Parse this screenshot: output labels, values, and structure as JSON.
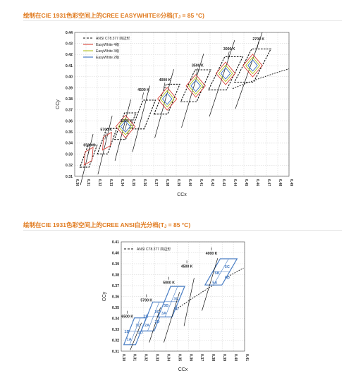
{
  "chart1_title_main": "绘制在CIE 1931色彩空间上的CREE EASYWHITE®分档(T",
  "chart1_title_sub": "J",
  "chart1_title_end": " = 85 °C)",
  "chart2_title_main": "绘制在CIE 1931色彩空间上的CREE ANSI白光分档(T",
  "chart2_title_sub": "J",
  "chart2_title_end": " = 85 °C)",
  "chart_data": [
    {
      "type": "scatter",
      "xlabel": "CCx",
      "ylabel": "CCy",
      "xlim": [
        0.3,
        0.49
      ],
      "ylim": [
        0.31,
        0.44
      ],
      "xticks": [
        "0.30",
        "0.31",
        "0.32",
        "0.33",
        "0.34",
        "0.35",
        "0.36",
        "0.37",
        "0.38",
        "0.39",
        "0.40",
        "0.41",
        "0.42",
        "0.43",
        "0.44",
        "0.45",
        "0.46",
        "0.47",
        "0.48",
        "0.49"
      ],
      "yticks": [
        "0.31",
        "0.32",
        "0.33",
        "0.34",
        "0.35",
        "0.36",
        "0.37",
        "0.38",
        "0.39",
        "0.40",
        "0.41",
        "0.42",
        "0.43",
        "0.44"
      ],
      "legend": [
        "ANSI C78.377 四边形",
        "EasyWhite 4级",
        "EasyWhite 3级",
        "EasyWhite 2级"
      ],
      "legend_position": "top-left",
      "series_colors": {
        "ansi": "#111111",
        "step4": "#d9443a",
        "step3": "#b5c21e",
        "step2": "#3a6fc2"
      },
      "cct_labels": [
        {
          "label": "6500 K",
          "x": 0.313,
          "y": 0.337
        },
        {
          "label": "5700 K",
          "x": 0.328,
          "y": 0.351
        },
        {
          "label": "5000 K",
          "x": 0.346,
          "y": 0.359
        },
        {
          "label": "4500 K",
          "x": 0.361,
          "y": 0.387
        },
        {
          "label": "4000 K",
          "x": 0.38,
          "y": 0.396
        },
        {
          "label": "3500 K",
          "x": 0.409,
          "y": 0.409
        },
        {
          "label": "3000 K",
          "x": 0.437,
          "y": 0.424
        },
        {
          "label": "2700 K",
          "x": 0.463,
          "y": 0.433
        }
      ],
      "quadrangles": [
        {
          "cct": "6500 K",
          "cx": 0.3123,
          "cy": 0.3282,
          "w": 0.008,
          "h": 0.02
        },
        {
          "cct": "5700 K",
          "cx": 0.3287,
          "cy": 0.3417,
          "w": 0.009,
          "h": 0.023
        },
        {
          "cct": "5000 K",
          "cx": 0.3447,
          "cy": 0.3553,
          "w": 0.01,
          "h": 0.024
        },
        {
          "cct": "4500 K",
          "cx": 0.3611,
          "cy": 0.3658,
          "w": 0.011,
          "h": 0.026
        },
        {
          "cct": "4000 K",
          "cx": 0.3818,
          "cy": 0.3797,
          "w": 0.012,
          "h": 0.027
        },
        {
          "cct": "3500 K",
          "cx": 0.4073,
          "cy": 0.3917,
          "w": 0.014,
          "h": 0.029
        },
        {
          "cct": "3000 K",
          "cx": 0.4338,
          "cy": 0.403,
          "w": 0.016,
          "h": 0.03
        },
        {
          "cct": "2700 K",
          "cx": 0.4578,
          "cy": 0.4101,
          "w": 0.017,
          "h": 0.03
        }
      ],
      "easywhite_centers": [
        {
          "x": 0.345,
          "y": 0.355
        },
        {
          "x": 0.382,
          "y": 0.38
        },
        {
          "x": 0.4073,
          "y": 0.3917
        },
        {
          "x": 0.4338,
          "y": 0.403
        },
        {
          "x": 0.4578,
          "y": 0.4101
        }
      ]
    },
    {
      "type": "scatter",
      "xlabel": "CCx",
      "ylabel": "CCy",
      "xlim": [
        0.3,
        0.41
      ],
      "ylim": [
        0.31,
        0.41
      ],
      "xticks": [
        "0.30",
        "0.31",
        "0.32",
        "0.33",
        "0.34",
        "0.35",
        "0.36",
        "0.37",
        "0.38",
        "0.39",
        "0.40",
        "0.41"
      ],
      "yticks": [
        "0.31",
        "0.32",
        "0.33",
        "0.34",
        "0.35",
        "0.36",
        "0.37",
        "0.38",
        "0.39",
        "0.40",
        "0.41"
      ],
      "legend": [
        "ANSI C78.377 四边形"
      ],
      "legend_position": "top-left",
      "bin_color": "#4a7ec4",
      "cct_labels": [
        {
          "label": "6500 K",
          "x": 0.3055,
          "y": 0.3405
        },
        {
          "label": "5700 K",
          "x": 0.3225,
          "y": 0.3555
        },
        {
          "label": "5000 K",
          "x": 0.3425,
          "y": 0.3715
        },
        {
          "label": "4500 K",
          "x": 0.3585,
          "y": 0.3865
        },
        {
          "label": "4000 K",
          "x": 0.3805,
          "y": 0.3985
        }
      ],
      "bins": [
        {
          "label": "1A",
          "x": 0.307,
          "y": 0.321
        },
        {
          "label": "1B",
          "x": 0.305,
          "y": 0.328
        },
        {
          "label": "1C",
          "x": 0.315,
          "y": 0.334
        },
        {
          "label": "1D",
          "x": 0.317,
          "y": 0.327
        },
        {
          "label": "2A",
          "x": 0.323,
          "y": 0.334
        },
        {
          "label": "2B",
          "x": 0.322,
          "y": 0.342
        },
        {
          "label": "2C",
          "x": 0.332,
          "y": 0.346
        },
        {
          "label": "2D",
          "x": 0.332,
          "y": 0.337
        },
        {
          "label": "3A",
          "x": 0.338,
          "y": 0.345
        },
        {
          "label": "3B",
          "x": 0.34,
          "y": 0.352
        },
        {
          "label": "3C",
          "x": 0.349,
          "y": 0.358
        },
        {
          "label": "3D",
          "x": 0.349,
          "y": 0.349
        },
        {
          "label": "5A",
          "x": 0.3835,
          "y": 0.373
        },
        {
          "label": "5B",
          "x": 0.3855,
          "y": 0.3815
        },
        {
          "label": "5C",
          "x": 0.3945,
          "y": 0.3875
        },
        {
          "label": "5D",
          "x": 0.3945,
          "y": 0.3775
        }
      ]
    }
  ]
}
